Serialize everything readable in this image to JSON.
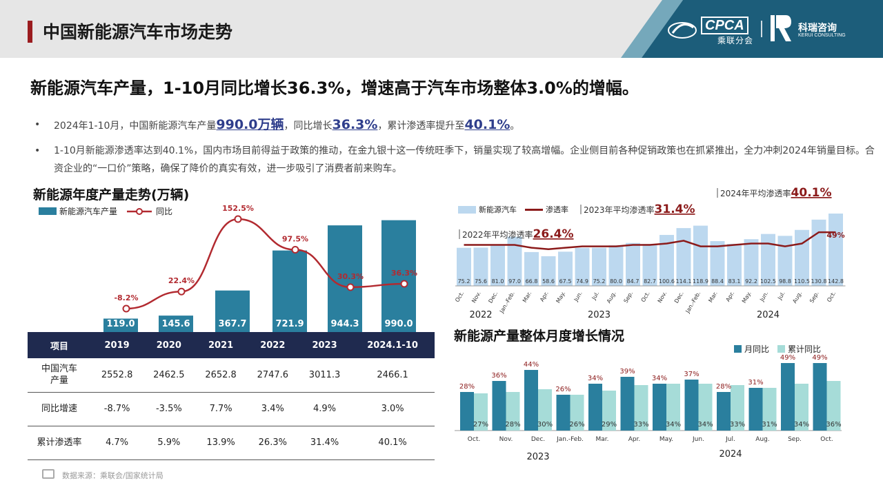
{
  "header": {
    "title": "中国新能源汽车市场走势",
    "logo_cpca": "CPCA",
    "logo_cpca_sub": "乘联分会",
    "logo_kerui": "科瑞咨询",
    "logo_kerui_en": "KERUI CONSULTING"
  },
  "headline": "新能源汽车产量，1-10月同比增长36.3%，增速高于汽车市场整体3.0%的增幅。",
  "bullets": {
    "b1": {
      "dot": "•",
      "p1": "2024年1-10月，中国新能源汽车产量",
      "v1": "990.0万辆",
      "p2": "，同比增长",
      "v2": "36.3%",
      "p3": "，累计渗透率提升至",
      "v3": "40.1%",
      "p4": "。"
    },
    "b2": {
      "dot": "•",
      "text": "1-10月新能源渗透率达到40.1%，国内市场目前得益于政策的推动，在金九银十这一传统旺季下，销量实现了较高增幅。企业侧目前各种促销政策也在抓紧推出，全力冲刺2024年销量目标。合资企业的“一口价”策略，确保了降价的真实有效，进一步吸引了消费者前来购车。"
    }
  },
  "colors": {
    "bar_dark": "#2a7f9e",
    "line_red": "#b22a30",
    "bar_light": "#bcd8ef",
    "bar_mint": "#a6dcd8",
    "table_header": "#1f2a4f"
  },
  "chart_data": [
    {
      "type": "bar",
      "title": "新能源年度产量走势(万辆)",
      "categories": [
        "2019",
        "2020",
        "2021",
        "2022",
        "2023",
        "2024.1-10"
      ],
      "series": [
        {
          "name": "新能源汽车产量",
          "values": [
            119.0,
            145.6,
            367.7,
            721.9,
            944.3,
            990.0
          ],
          "labels": [
            "119.0",
            "145.6",
            "367.7",
            "721.9",
            "944.3",
            "990.0"
          ]
        },
        {
          "name": "同比",
          "type": "line",
          "values": [
            -8.2,
            22.4,
            152.5,
            97.5,
            30.3,
            36.3
          ],
          "labels": [
            "-8.2%",
            "22.4%",
            "152.5%",
            "97.5%",
            "30.3%",
            "36.3%"
          ]
        }
      ],
      "table": {
        "header": [
          "项目",
          "2019",
          "2020",
          "2021",
          "2022",
          "2023",
          "2024.1-10"
        ],
        "rows": [
          {
            "label": "中国汽车产量",
            "values": [
              "2552.8",
              "2462.5",
              "2652.8",
              "2747.6",
              "3011.3",
              "2466.1"
            ]
          },
          {
            "label": "同比增速",
            "values": [
              "-8.7%",
              "-3.5%",
              "7.7%",
              "3.4%",
              "4.9%",
              "3.0%"
            ]
          },
          {
            "label": "累计渗透率",
            "values": [
              "4.7%",
              "5.9%",
              "13.9%",
              "26.3%",
              "31.4%",
              "40.1%"
            ]
          }
        ]
      }
    },
    {
      "type": "bar",
      "categories": [
        "Oct.",
        "Nov.",
        "Dec.",
        "Jan.-Feb.",
        "Mar.",
        "Apr.",
        "May.",
        "Jun.",
        "Jul.",
        "Aug.",
        "Sep.",
        "Oct.",
        "Nov.",
        "Dec.",
        "Jan.-Feb.",
        "Mar.",
        "Apr.",
        "May.",
        "Jun.",
        "Jul.",
        "Aug.",
        "Sep.",
        "Oct."
      ],
      "year_groups": [
        {
          "label": "2022",
          "start": 0,
          "end": 2
        },
        {
          "label": "2023",
          "start": 3,
          "end": 13
        },
        {
          "label": "2024",
          "start": 14,
          "end": 22
        }
      ],
      "series": [
        {
          "name": "新能源汽车",
          "values": [
            75.2,
            75.6,
            81.0,
            97.0,
            66.8,
            58.6,
            67.5,
            74.9,
            75.2,
            80.0,
            84.7,
            82.7,
            100.6,
            114.1,
            118.9,
            88.4,
            83.1,
            92.2,
            102.5,
            98.8,
            110.5,
            130.8,
            142.8
          ],
          "labels": [
            "75.2",
            "75.6",
            "81.0",
            "97.0",
            "66.8",
            "58.6",
            "67.5",
            "74.9",
            "75.2",
            "80.0",
            "84.7",
            "82.7",
            "100.6",
            "114.1",
            "118.9",
            "88.4",
            "83.1",
            "92.2",
            "102.5",
            "98.8",
            "110.5",
            "130.8",
            "142.8"
          ]
        },
        {
          "name": "渗透率",
          "type": "line",
          "values": [
            29,
            29,
            29,
            29,
            27,
            26,
            27,
            28,
            28,
            28,
            29,
            29,
            30,
            32,
            28,
            28,
            29,
            30,
            30,
            28,
            30,
            38,
            38
          ]
        }
      ],
      "annotations": [
        {
          "prefix": "2022年平均渗透率",
          "value": "26.4%"
        },
        {
          "prefix": "2023年平均渗透率",
          "value": "31.4%"
        },
        {
          "prefix": "2024年平均渗透率",
          "value": "40.1%"
        },
        {
          "text": "49%"
        }
      ]
    },
    {
      "type": "bar",
      "title": "新能源产量整体月度增长情况",
      "categories": [
        "Oct.",
        "Nov.",
        "Dec.",
        "Jan.-Feb.",
        "Mar.",
        "Apr.",
        "May.",
        "Jun.",
        "Jul.",
        "Aug.",
        "Sep.",
        "Oct."
      ],
      "year_groups": [
        {
          "label": "2023",
          "start": 0,
          "end": 4
        },
        {
          "label": "2024",
          "start": 5,
          "end": 11
        }
      ],
      "series": [
        {
          "name": "月同比",
          "values": [
            28,
            36,
            44,
            26,
            34,
            39,
            34,
            37,
            28,
            31,
            49,
            49
          ],
          "labels": [
            "28%",
            "36%",
            "44%",
            "26%",
            "34%",
            "39%",
            "34%",
            "37%",
            "28%",
            "31%",
            "49%",
            "49%"
          ]
        },
        {
          "name": "累计同比",
          "values": [
            27,
            28,
            30,
            26,
            29,
            33,
            34,
            34,
            33,
            31,
            34,
            36
          ],
          "labels": [
            "27%",
            "28%",
            "30%",
            "26%",
            "29%",
            "33%",
            "34%",
            "34%",
            "33%",
            "31%",
            "34%",
            "36%"
          ]
        }
      ]
    }
  ],
  "source": "数据来源：乘联会/国家统计局"
}
